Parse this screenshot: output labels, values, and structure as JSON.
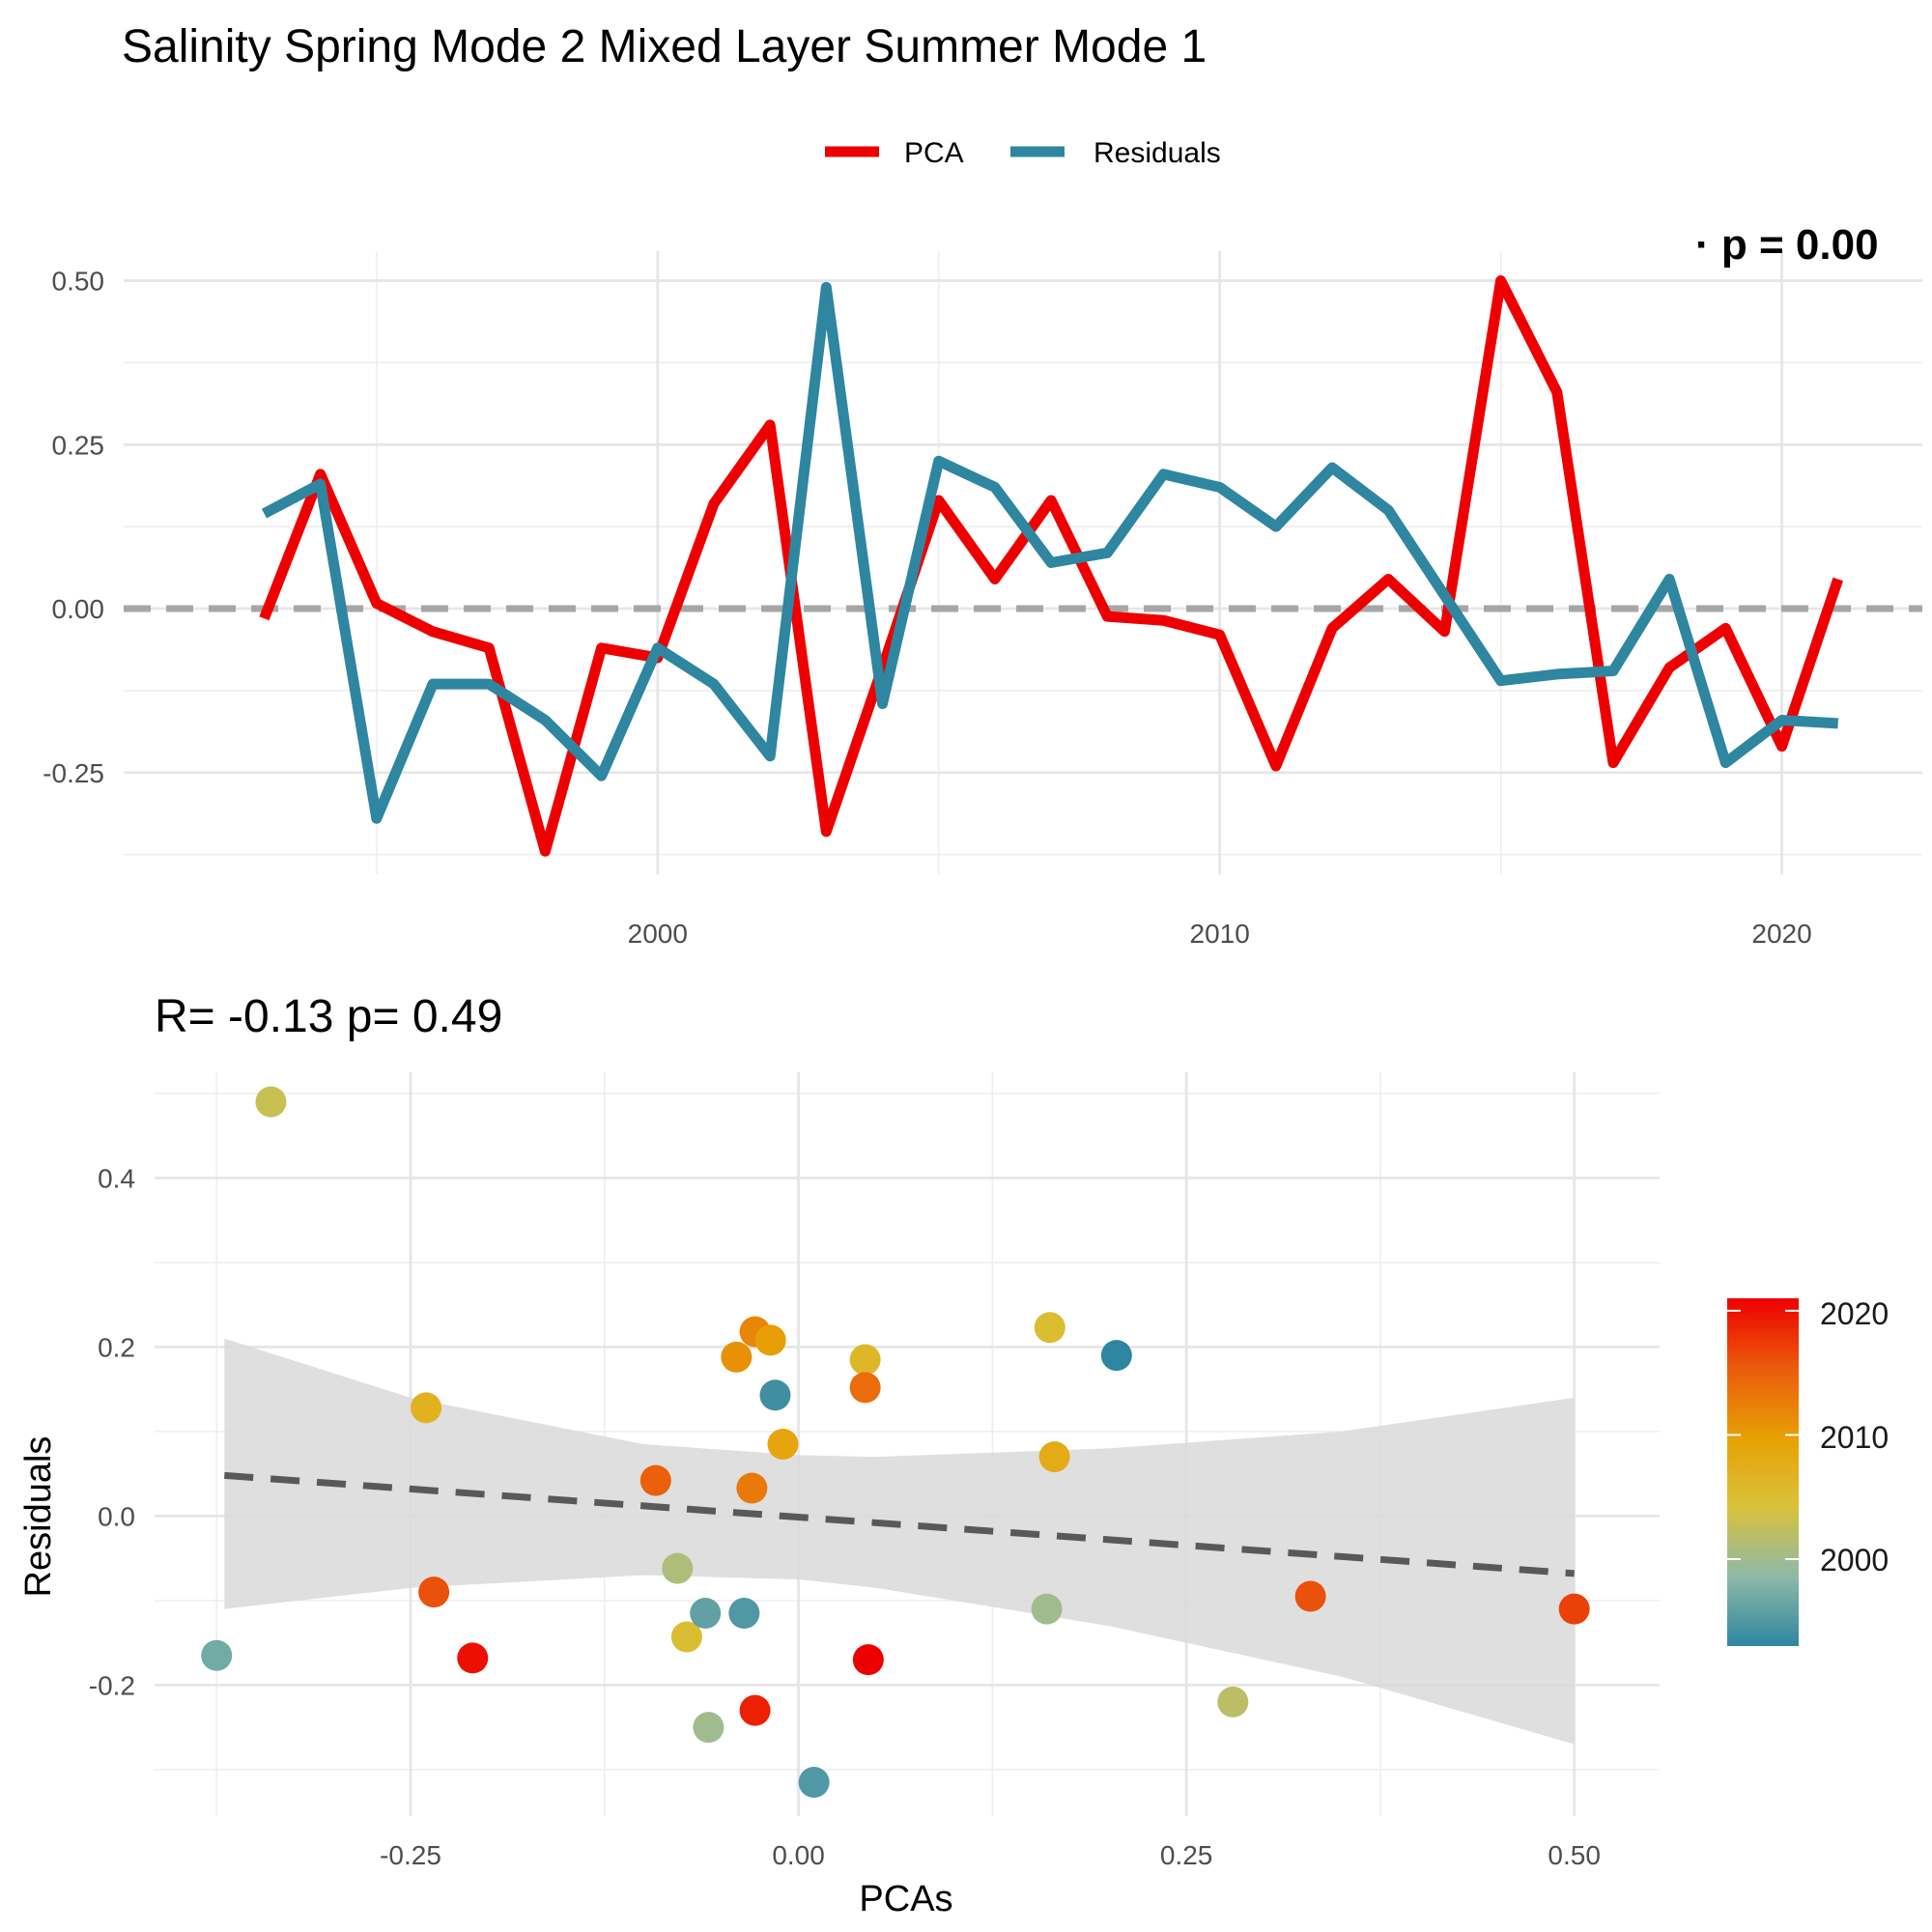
{
  "title": "Salinity Spring Mode 2 Mixed Layer Summer Mode 1",
  "chart_data": [
    {
      "type": "line",
      "legend": {
        "position": "top",
        "entries": [
          "PCA",
          "Residuals"
        ]
      },
      "x": [
        1993,
        1994,
        1995,
        1996,
        1997,
        1998,
        1999,
        2000,
        2001,
        2002,
        2003,
        2004,
        2005,
        2006,
        2007,
        2008,
        2009,
        2010,
        2011,
        2012,
        2013,
        2014,
        2015,
        2016,
        2017,
        2018,
        2019,
        2020,
        2021
      ],
      "series": [
        {
          "name": "PCA",
          "color": "#ee0000",
          "values": [
            -0.015,
            0.205,
            0.008,
            -0.035,
            -0.06,
            -0.37,
            -0.06,
            -0.075,
            0.16,
            0.28,
            -0.34,
            -0.09,
            0.165,
            0.045,
            0.165,
            -0.012,
            -0.018,
            -0.04,
            -0.24,
            -0.03,
            0.045,
            -0.035,
            0.5,
            0.33,
            -0.235,
            -0.09,
            -0.03,
            -0.21,
            0.045
          ]
        },
        {
          "name": "Residuals",
          "color": "#2e86a0",
          "values": [
            0.145,
            0.19,
            -0.32,
            -0.115,
            -0.115,
            -0.17,
            -0.255,
            -0.06,
            -0.115,
            -0.225,
            0.49,
            -0.145,
            0.225,
            0.185,
            0.07,
            0.085,
            0.205,
            0.185,
            0.125,
            0.215,
            0.15,
            0.02,
            -0.11,
            -0.1,
            -0.095,
            0.045,
            -0.235,
            -0.17,
            -0.175
          ]
        }
      ],
      "xlim": [
        1990.5,
        2022.5
      ],
      "ylim": [
        -0.405,
        0.545
      ],
      "x_ticks": [
        "2000",
        "2010",
        "2020"
      ],
      "y_ticks": [
        "-0.25",
        "0.00",
        "0.25",
        "0.50"
      ],
      "reference_line": {
        "y": 0,
        "style": "dashed",
        "color": "#a6a6a6"
      },
      "annotation_clipped": "· p = 0.00",
      "grid": true
    },
    {
      "type": "scatter",
      "subtitle": "R= -0.13  p= 0.49",
      "xlabel": "PCAs",
      "ylabel": "Residuals",
      "xlim": [
        -0.415,
        0.555
      ],
      "ylim": [
        -0.355,
        0.525
      ],
      "x_ticks": [
        "-0.25",
        "0.00",
        "0.25",
        "0.50"
      ],
      "y_ticks": [
        "-0.2",
        "0.0",
        "0.2",
        "0.4"
      ],
      "points": [
        {
          "x": -0.34,
          "y": 0.49,
          "year": 2003
        },
        {
          "x": -0.24,
          "y": 0.128,
          "year": 2007
        },
        {
          "x": -0.235,
          "y": -0.09,
          "year": 2016
        },
        {
          "x": -0.21,
          "y": -0.168,
          "year": 2020
        },
        {
          "x": -0.375,
          "y": -0.165,
          "year": 1997
        },
        {
          "x": -0.092,
          "y": 0.042,
          "year": 2015
        },
        {
          "x": -0.078,
          "y": -0.062,
          "year": 2001
        },
        {
          "x": -0.072,
          "y": -0.143,
          "year": 2005
        },
        {
          "x": -0.06,
          "y": -0.115,
          "year": 1996
        },
        {
          "x": -0.058,
          "y": -0.25,
          "year": 2000
        },
        {
          "x": -0.04,
          "y": 0.188,
          "year": 2011
        },
        {
          "x": -0.035,
          "y": -0.115,
          "year": 1995
        },
        {
          "x": -0.03,
          "y": 0.033,
          "year": 2013
        },
        {
          "x": -0.028,
          "y": 0.218,
          "year": 2012
        },
        {
          "x": -0.028,
          "y": -0.23,
          "year": 2019
        },
        {
          "x": -0.018,
          "y": 0.208,
          "year": 2010
        },
        {
          "x": -0.015,
          "y": 0.143,
          "year": 1994
        },
        {
          "x": -0.01,
          "y": 0.085,
          "year": 2009
        },
        {
          "x": 0.01,
          "y": -0.315,
          "year": 1995
        },
        {
          "x": 0.043,
          "y": 0.185,
          "year": 2006
        },
        {
          "x": 0.043,
          "y": 0.152,
          "year": 2014
        },
        {
          "x": 0.045,
          "y": -0.17,
          "year": 2021
        },
        {
          "x": 0.162,
          "y": 0.223,
          "year": 2005
        },
        {
          "x": 0.165,
          "y": 0.07,
          "year": 2008
        },
        {
          "x": 0.16,
          "y": -0.11,
          "year": 2000
        },
        {
          "x": 0.205,
          "y": 0.19,
          "year": 1993
        },
        {
          "x": 0.28,
          "y": -0.22,
          "year": 2002
        },
        {
          "x": 0.33,
          "y": -0.095,
          "year": 2016
        },
        {
          "x": 0.5,
          "y": -0.11,
          "year": 2017
        }
      ],
      "trend_line": {
        "x": [
          -0.37,
          0.5
        ],
        "y": [
          0.048,
          -0.068
        ],
        "style": "dashed",
        "color": "#595959"
      },
      "confidence_band": {
        "x": [
          -0.37,
          -0.25,
          -0.1,
          0.0,
          0.05,
          0.2,
          0.35,
          0.5
        ],
        "upper": [
          0.21,
          0.14,
          0.085,
          0.072,
          0.07,
          0.08,
          0.1,
          0.14
        ],
        "lower": [
          -0.11,
          -0.085,
          -0.07,
          -0.075,
          -0.085,
          -0.13,
          -0.19,
          -0.27
        ],
        "color": "#d9d9d9"
      },
      "colorbar": {
        "title": "",
        "ticks": [
          "2000",
          "2010",
          "2020"
        ],
        "range": [
          1993,
          2021
        ],
        "colors": [
          "#2e86a0",
          "#8db9a8",
          "#d9c23a",
          "#e8a005",
          "#ea5b0c",
          "#ee0000"
        ]
      },
      "grid": true
    }
  ]
}
